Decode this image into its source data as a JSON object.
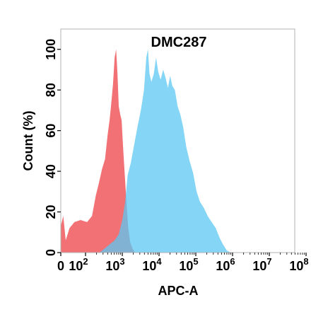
{
  "chart_data": {
    "type": "area",
    "title": "DMC287",
    "xlabel": "APC-A",
    "ylabel": "Count  (%)",
    "xscale": "biexponential-log",
    "xlim": [
      0,
      100000000
    ],
    "ylim": [
      0,
      110
    ],
    "x_ticks": [
      {
        "value": 0,
        "base": "0",
        "exp": ""
      },
      {
        "value": 100,
        "base": "10",
        "exp": "2"
      },
      {
        "value": 1000,
        "base": "10",
        "exp": "3"
      },
      {
        "value": 10000,
        "base": "10",
        "exp": "4"
      },
      {
        "value": 100000,
        "base": "10",
        "exp": "5"
      },
      {
        "value": 1000000,
        "base": "10",
        "exp": "6"
      },
      {
        "value": 10000000,
        "base": "10",
        "exp": "7"
      },
      {
        "value": 100000000,
        "base": "10",
        "exp": "8"
      }
    ],
    "y_ticks": [
      0,
      20,
      40,
      60,
      80,
      100
    ],
    "grid": false,
    "legend": "none",
    "series": [
      {
        "color": "#f0696e",
        "values": [
          [
            0,
            13
          ],
          [
            10,
            18
          ],
          [
            20,
            6
          ],
          [
            35,
            12
          ],
          [
            55,
            15
          ],
          [
            80,
            16
          ],
          [
            110,
            15
          ],
          [
            150,
            18
          ],
          [
            190,
            28
          ],
          [
            230,
            34
          ],
          [
            280,
            41
          ],
          [
            340,
            46
          ],
          [
            400,
            58
          ],
          [
            450,
            65
          ],
          [
            500,
            73
          ],
          [
            560,
            83
          ],
          [
            620,
            96
          ],
          [
            680,
            100
          ],
          [
            740,
            88
          ],
          [
            800,
            72
          ],
          [
            880,
            68
          ],
          [
            960,
            65
          ],
          [
            1050,
            52
          ],
          [
            1150,
            40
          ],
          [
            1300,
            25
          ],
          [
            1450,
            12
          ],
          [
            1650,
            5
          ],
          [
            1900,
            2
          ],
          [
            2200,
            0
          ]
        ]
      },
      {
        "color": "#5bc7f3",
        "values": [
          [
            240,
            0
          ],
          [
            330,
            2
          ],
          [
            450,
            4
          ],
          [
            620,
            6
          ],
          [
            800,
            9
          ],
          [
            1000,
            16
          ],
          [
            1200,
            25
          ],
          [
            1400,
            38
          ],
          [
            1700,
            44
          ],
          [
            2100,
            53
          ],
          [
            2600,
            62
          ],
          [
            3200,
            70
          ],
          [
            3900,
            80
          ],
          [
            4500,
            96
          ],
          [
            5000,
            100
          ],
          [
            5500,
            88
          ],
          [
            6200,
            84
          ],
          [
            7200,
            88
          ],
          [
            8300,
            96
          ],
          [
            9500,
            89
          ],
          [
            11000,
            85
          ],
          [
            13000,
            90
          ],
          [
            15000,
            86
          ],
          [
            17500,
            81
          ],
          [
            20000,
            87
          ],
          [
            23000,
            82
          ],
          [
            27000,
            80
          ],
          [
            32000,
            72
          ],
          [
            38000,
            68
          ],
          [
            45000,
            62
          ],
          [
            55000,
            52
          ],
          [
            68000,
            45
          ],
          [
            85000,
            39
          ],
          [
            105000,
            30
          ],
          [
            130000,
            25
          ],
          [
            165000,
            22
          ],
          [
            210000,
            18
          ],
          [
            270000,
            15
          ],
          [
            350000,
            12
          ],
          [
            450000,
            7
          ],
          [
            550000,
            4
          ],
          [
            700000,
            1
          ],
          [
            900000,
            0
          ]
        ]
      }
    ]
  }
}
